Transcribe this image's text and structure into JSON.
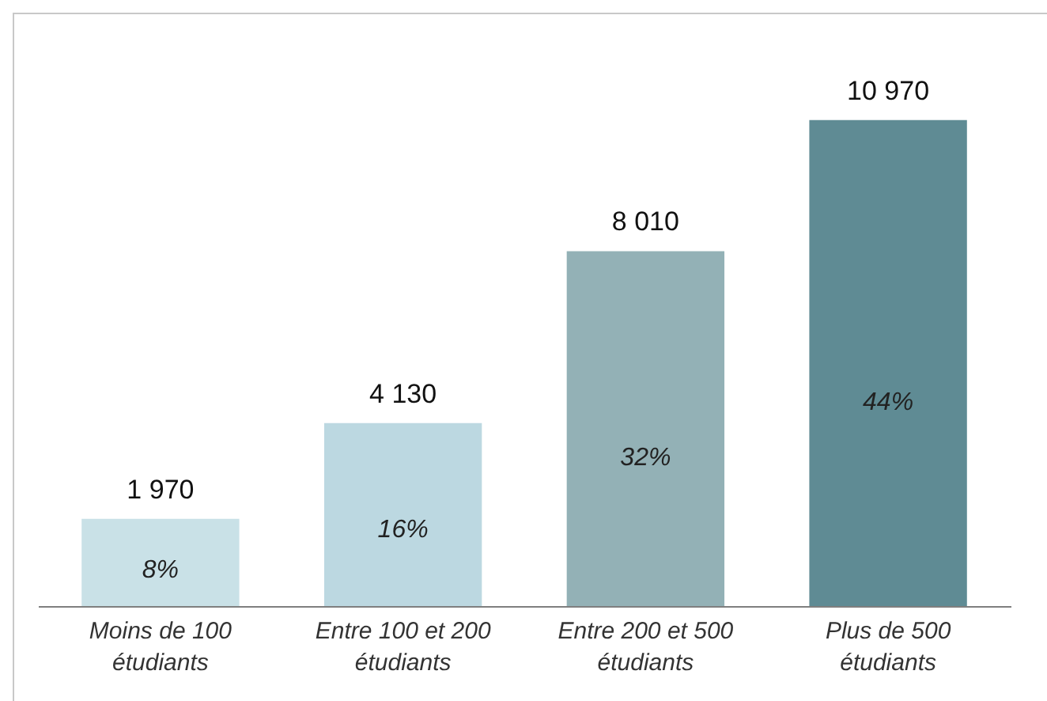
{
  "chart_data": {
    "type": "bar",
    "categories": [
      "Moins de 100 étudiants",
      "Entre 100 et 200 étudiants",
      "Entre 200 et 500 étudiants",
      "Plus de 500 étudiants"
    ],
    "values": [
      1970,
      4130,
      8010,
      10970
    ],
    "colors": [
      "#c9e1e7",
      "#bcd8e1",
      "#93b1b6",
      "#5f8b94"
    ],
    "value_labels": [
      "1 970",
      "4 130",
      "8 010",
      "10 970"
    ],
    "annotations": [
      "8%",
      "16%",
      "32%",
      "44%"
    ]
  }
}
